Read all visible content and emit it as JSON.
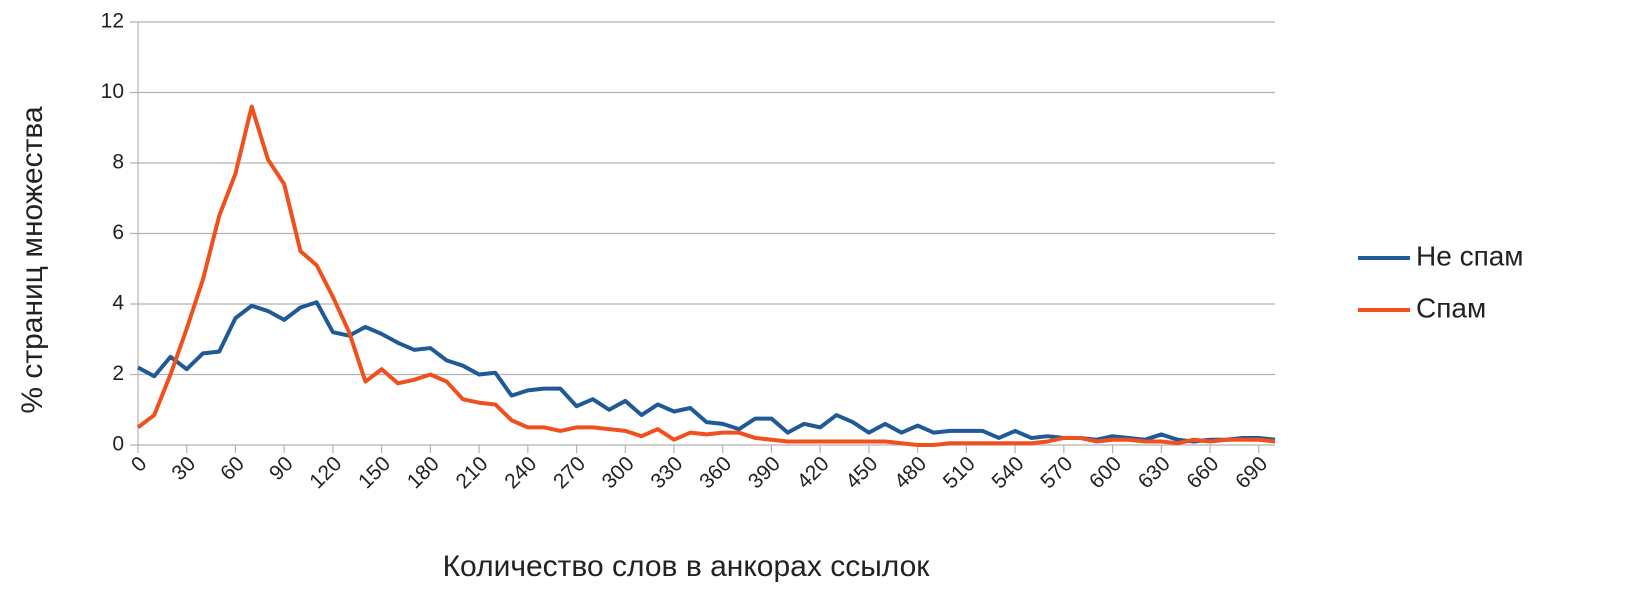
{
  "chart_data": {
    "type": "line",
    "x_label": "Количество слов в анкорах ссылок",
    "y_label": "% страниц множества",
    "x": [
      0,
      10,
      20,
      30,
      40,
      50,
      60,
      70,
      80,
      90,
      100,
      110,
      120,
      130,
      140,
      150,
      160,
      170,
      180,
      190,
      200,
      210,
      220,
      230,
      240,
      250,
      260,
      270,
      280,
      290,
      300,
      310,
      320,
      330,
      340,
      350,
      360,
      370,
      380,
      390,
      400,
      410,
      420,
      430,
      440,
      450,
      460,
      470,
      480,
      490,
      500,
      510,
      520,
      530,
      540,
      550,
      560,
      570,
      580,
      590,
      600,
      610,
      620,
      630,
      640,
      650,
      660,
      670,
      680,
      690,
      700
    ],
    "series": [
      {
        "name": "Не спам",
        "color": "#1f5a96",
        "values": [
          2.2,
          1.95,
          2.5,
          2.15,
          2.6,
          2.65,
          3.6,
          3.95,
          3.8,
          3.55,
          3.9,
          4.05,
          3.2,
          3.1,
          3.35,
          3.15,
          2.9,
          2.7,
          2.75,
          2.4,
          2.25,
          2.0,
          2.05,
          1.4,
          1.55,
          1.6,
          1.6,
          1.1,
          1.3,
          1.0,
          1.25,
          0.85,
          1.15,
          0.95,
          1.05,
          0.65,
          0.6,
          0.45,
          0.75,
          0.75,
          0.35,
          0.6,
          0.5,
          0.85,
          0.65,
          0.35,
          0.6,
          0.35,
          0.55,
          0.35,
          0.4,
          0.4,
          0.4,
          0.2,
          0.4,
          0.2,
          0.25,
          0.2,
          0.2,
          0.15,
          0.25,
          0.2,
          0.15,
          0.3,
          0.15,
          0.1,
          0.15,
          0.15,
          0.2,
          0.2,
          0.15
        ]
      },
      {
        "name": "Спам",
        "color": "#f0501e",
        "values": [
          0.5,
          0.85,
          2.0,
          3.3,
          4.7,
          6.5,
          7.7,
          9.6,
          8.1,
          7.4,
          5.5,
          5.1,
          4.2,
          3.2,
          1.8,
          2.15,
          1.75,
          1.85,
          2.0,
          1.8,
          1.3,
          1.2,
          1.15,
          0.7,
          0.5,
          0.5,
          0.4,
          0.5,
          0.5,
          0.45,
          0.4,
          0.25,
          0.45,
          0.15,
          0.35,
          0.3,
          0.35,
          0.35,
          0.2,
          0.15,
          0.1,
          0.1,
          0.1,
          0.1,
          0.1,
          0.1,
          0.1,
          0.05,
          0.0,
          0.0,
          0.05,
          0.05,
          0.05,
          0.05,
          0.05,
          0.05,
          0.1,
          0.2,
          0.2,
          0.1,
          0.15,
          0.15,
          0.1,
          0.1,
          0.05,
          0.15,
          0.1,
          0.15,
          0.15,
          0.15,
          0.1
        ]
      }
    ],
    "xlim": [
      0,
      700
    ],
    "xticks": [
      0,
      30,
      60,
      90,
      120,
      150,
      180,
      210,
      240,
      270,
      300,
      330,
      360,
      390,
      420,
      450,
      480,
      510,
      540,
      570,
      600,
      630,
      660,
      690
    ],
    "ylim": [
      0,
      12
    ],
    "yticks": [
      0,
      2,
      4,
      6,
      8,
      10,
      12
    ],
    "grid": true,
    "legend": "right"
  }
}
